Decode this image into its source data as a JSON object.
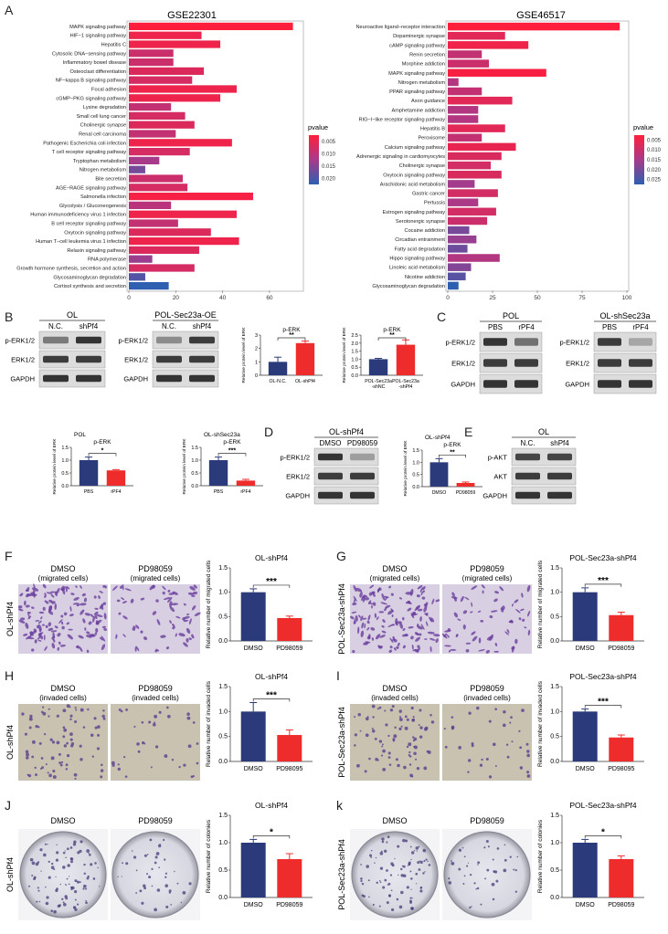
{
  "panel_letters": [
    "A",
    "B",
    "C",
    "D",
    "E",
    "F",
    "G",
    "H",
    "I",
    "J",
    "k"
  ],
  "colors": {
    "navy": "#2b3a7a",
    "red": "#ee2c2c",
    "grad_top": "#ff1e3c",
    "grad_mid": "#a83a8a",
    "grad_bot": "#2e5fb0",
    "blot_bg": "#dcdcdc",
    "band": "#2a2a2a",
    "cell_bg": "#d8cfe2",
    "cell": "#6a3f9e",
    "inv_bg": "#c9c2b0",
    "colony_bg": "#dedfe6"
  },
  "chart_data": [
    {
      "type": "bar",
      "id": "gse22301",
      "title": "GSE22301",
      "orientation": "horizontal",
      "categories": [
        "MAPK signaling pathway",
        "HIF−1 signaling pathway",
        "Hepatitis C",
        "Cytosolic DNA−sensing pathway",
        "Inflammatory bowel disease",
        "Osteoclast differentiation",
        "NF−kappa B signaling pathway",
        "Focal adhesion",
        "cGMP−PKG signaling pathway",
        "Lysine degradation",
        "Small cell lung cancer",
        "Cholinergic synapse",
        "Renal cell carcinoma",
        "Pathogenic Escherichia coli infection",
        "T cell receptor signaling pathway",
        "Tryptophan metabolism",
        "Nitrogen metabolism",
        "Bile secretion",
        "AGE−RAGE signaling pathway",
        "Salmonella infection",
        "Glycolysis / Gluconeogenesis",
        "Human immunodeficiency virus 1 infection",
        "B cell receptor signaling pathway",
        "Oxytocin signaling pathway",
        "Human T−cell leukemia virus 1 infection",
        "Relaxin signaling pathway",
        "RNA polymerase",
        "Growth hormone synthesis, secretion and action",
        "Glycosaminoglycan degradation",
        "Cortisol synthesis and secretion"
      ],
      "values": [
        70,
        31,
        39,
        19,
        19,
        32,
        27,
        46,
        39,
        18,
        24,
        28,
        20,
        44,
        26,
        13,
        7,
        23,
        25,
        53,
        18,
        46,
        21,
        35,
        47,
        30,
        10,
        28,
        7,
        17
      ],
      "pvalues": [
        0.002,
        0.004,
        0.004,
        0.008,
        0.008,
        0.006,
        0.007,
        0.004,
        0.004,
        0.009,
        0.007,
        0.006,
        0.009,
        0.004,
        0.007,
        0.012,
        0.016,
        0.008,
        0.007,
        0.003,
        0.01,
        0.004,
        0.009,
        0.006,
        0.004,
        0.006,
        0.013,
        0.007,
        0.019,
        0.022
      ],
      "xticks": [
        "0",
        "20",
        "40",
        "60"
      ],
      "xlim": [
        0,
        72
      ],
      "legend": {
        "title": "pvalue",
        "ticks": [
          "0.005",
          "0.010",
          "0.015",
          "0.020"
        ]
      }
    },
    {
      "type": "bar",
      "id": "gse46517",
      "title": "GSE46517",
      "orientation": "horizontal",
      "categories": [
        "Neuroactive ligand−receptor interaction",
        "Dopaminergic synapse",
        "cAMP signaling pathway",
        "Renin secretion",
        "Morphine addiction",
        "MAPK signaling pathway",
        "Nitrogen metabolism",
        "PPAR signaling pathway",
        "Axon guidance",
        "Amphetamine addiction",
        "RIG−I−like receptor signaling pathway",
        "Hepatitis B",
        "Peroxisome",
        "Calcium signaling pathway",
        "Adrenergic signaling in cardiomyocytes",
        "Cholinergic synapse",
        "Oxytocin signaling pathway",
        "Arachidonic acid metabolism",
        "Gastric cancer",
        "Pertussis",
        "Estrogen signaling pathway",
        "Serotonergic synapse",
        "Cocaine addiction",
        "Circadian entrainment",
        "Fatty acid degradation",
        "Hippo signaling pathway",
        "Linoleic acid metabolism",
        "Nicotine addiction",
        "Glycosaminoglycan degradation"
      ],
      "values": [
        96,
        32,
        45,
        19,
        23,
        55,
        6,
        19,
        36,
        17,
        17,
        32,
        19,
        38,
        30,
        24,
        30,
        15,
        28,
        17,
        27,
        22,
        12,
        16,
        11,
        29,
        13,
        10,
        6
      ],
      "pvalues": [
        0.002,
        0.006,
        0.004,
        0.01,
        0.009,
        0.003,
        0.012,
        0.01,
        0.006,
        0.012,
        0.012,
        0.006,
        0.01,
        0.005,
        0.007,
        0.008,
        0.007,
        0.014,
        0.008,
        0.013,
        0.008,
        0.009,
        0.018,
        0.015,
        0.019,
        0.012,
        0.017,
        0.021,
        0.025
      ],
      "xticks": [
        "0",
        "25",
        "50",
        "75",
        "100"
      ],
      "xlim": [
        0,
        100
      ],
      "legend": {
        "title": "pvalue",
        "ticks": [
          "0.005",
          "0.010",
          "0.015",
          "0.020",
          "0.025"
        ]
      }
    },
    {
      "type": "bar",
      "id": "b1",
      "title": "p-ERK",
      "ylabel": "Relative protein level of ERK",
      "categories": [
        "OL-N.C.",
        "OL-shPf4"
      ],
      "values": [
        1.0,
        2.4
      ],
      "errors": [
        0.35,
        0.15
      ],
      "ylim": [
        0,
        3
      ],
      "yticks": [
        "0",
        "1",
        "2",
        "3"
      ],
      "sig": "**"
    },
    {
      "type": "bar",
      "id": "b2",
      "title": "p-ERK",
      "ylabel": "Relative protein level of ERK",
      "categories": [
        "POL-Sec23a\n-shNC",
        "POL-Sec23a\n-shPf4"
      ],
      "values": [
        1.0,
        1.9
      ],
      "errors": [
        0.05,
        0.3
      ],
      "ylim": [
        0,
        2.5
      ],
      "yticks": [
        "0.0",
        "0.5",
        "1.0",
        "1.5",
        "2.0",
        "2.5"
      ],
      "sig": "**"
    },
    {
      "type": "bar",
      "id": "c1",
      "title": "p-ERK",
      "corner": "POL",
      "ylabel": "Relative protein level of ERK",
      "categories": [
        "PBS",
        "rPF4"
      ],
      "values": [
        1.0,
        0.6
      ],
      "errors": [
        0.12,
        0.03
      ],
      "ylim": [
        0,
        1.5
      ],
      "yticks": [
        "0.0",
        "0.5",
        "1.0",
        "1.5"
      ],
      "sig": "*"
    },
    {
      "type": "bar",
      "id": "c2",
      "title": "p-ERK",
      "corner": "OL-shSec23a",
      "ylabel": "Relative protein level of ERK",
      "categories": [
        "PBS",
        "rPF4"
      ],
      "values": [
        1.0,
        0.2
      ],
      "errors": [
        0.12,
        0.05
      ],
      "ylim": [
        0,
        1.5
      ],
      "yticks": [
        "0.0",
        "0.5",
        "1.0",
        "1.5"
      ],
      "sig": "***"
    },
    {
      "type": "bar",
      "id": "d1",
      "title": "p-ERK",
      "corner": "OL-shPf4",
      "ylabel": "Relative protein level of ERK",
      "categories": [
        "DMSO",
        "PD98059"
      ],
      "values": [
        1.0,
        0.15
      ],
      "errors": [
        0.15,
        0.04
      ],
      "ylim": [
        0,
        1.5
      ],
      "yticks": [
        "0.0",
        "0.5",
        "1.0",
        "1.5"
      ],
      "sig": "**"
    },
    {
      "type": "bar",
      "id": "f1",
      "title": "OL-shPf4",
      "ylabel": "Relative number of migrated cells",
      "categories": [
        "DMSO",
        "PD98059"
      ],
      "values": [
        1.0,
        0.47
      ],
      "errors": [
        0.07,
        0.04
      ],
      "ylim": [
        0,
        1.5
      ],
      "yticks": [
        "0.0",
        "0.5",
        "1.0",
        "1.5"
      ],
      "sig": "***"
    },
    {
      "type": "bar",
      "id": "g1",
      "title": "POL-Sec23a-shPf4",
      "ylabel": "Relative number of migrated cells",
      "categories": [
        "DMSO",
        "PD98059"
      ],
      "values": [
        1.0,
        0.53
      ],
      "errors": [
        0.09,
        0.06
      ],
      "ylim": [
        0,
        1.5
      ],
      "yticks": [
        "0.0",
        "0.5",
        "1.0",
        "1.5"
      ],
      "sig": "***"
    },
    {
      "type": "bar",
      "id": "h1",
      "title": "OL-shPf4",
      "ylabel": "Relative number of invaded cells",
      "categories": [
        "DMSO",
        "PD98095"
      ],
      "values": [
        1.0,
        0.53
      ],
      "errors": [
        0.18,
        0.1
      ],
      "ylim": [
        0,
        1.5
      ],
      "yticks": [
        "0.0",
        "0.5",
        "1.0",
        "1.5"
      ],
      "sig": "***"
    },
    {
      "type": "bar",
      "id": "i1",
      "title": "POL-Sec23a-shPf4",
      "ylabel": "Relative number of invaded cells",
      "categories": [
        "DMSO",
        "PD98095"
      ],
      "values": [
        1.0,
        0.48
      ],
      "errors": [
        0.05,
        0.05
      ],
      "ylim": [
        0,
        1.5
      ],
      "yticks": [
        "0.0",
        "0.5",
        "1.0",
        "1.5"
      ],
      "sig": "***"
    },
    {
      "type": "bar",
      "id": "j1",
      "title": "OL-shPf4",
      "ylabel": "Relative number of colonies",
      "categories": [
        "DMSO",
        "PD98059"
      ],
      "values": [
        1.0,
        0.7
      ],
      "errors": [
        0.06,
        0.1
      ],
      "ylim": [
        0,
        1.5
      ],
      "yticks": [
        "0.0",
        "0.5",
        "1.0",
        "1.5"
      ],
      "sig": "*"
    },
    {
      "type": "bar",
      "id": "k1",
      "title": "POL-Sec23a-shPf4",
      "ylabel": "Relative number of colonies",
      "categories": [
        "DMSO",
        "PD98059"
      ],
      "values": [
        1.0,
        0.7
      ],
      "errors": [
        0.06,
        0.06
      ],
      "ylim": [
        0,
        1.5
      ],
      "yticks": [
        "0.0",
        "0.5",
        "1.0",
        "1.5"
      ],
      "sig": "*"
    }
  ],
  "blots": [
    {
      "id": "b-ol",
      "group": "OL",
      "lanes": [
        "N.C.",
        "shPf4"
      ],
      "rows": [
        "p-ERK1/2",
        "ERK1/2",
        "GAPDH"
      ],
      "intensity": [
        [
          0.55,
          0.95
        ],
        [
          0.9,
          0.9
        ],
        [
          0.95,
          0.95
        ]
      ]
    },
    {
      "id": "b-pol",
      "group": "POL-Sec23a-OE",
      "lanes": [
        "N.C.",
        "shPf4"
      ],
      "rows": [
        "p-ERK1/2",
        "ERK1/2",
        "GAPDH"
      ],
      "intensity": [
        [
          0.45,
          0.9
        ],
        [
          0.9,
          0.9
        ],
        [
          0.95,
          0.95
        ]
      ]
    },
    {
      "id": "c-pol",
      "group": "POL",
      "lanes": [
        "PBS",
        "rPF4"
      ],
      "rows": [
        "p-ERK1/2",
        "ERK1/2",
        "GAPDH"
      ],
      "intensity": [
        [
          0.95,
          0.6
        ],
        [
          0.9,
          0.9
        ],
        [
          0.95,
          0.95
        ]
      ]
    },
    {
      "id": "c-ol",
      "group": "OL-shSec23a",
      "lanes": [
        "PBS",
        "rPF4"
      ],
      "rows": [
        "p-ERK1/2",
        "ERK1/2",
        "GAPDH"
      ],
      "intensity": [
        [
          0.9,
          0.3
        ],
        [
          0.9,
          0.9
        ],
        [
          0.95,
          0.95
        ]
      ]
    },
    {
      "id": "d-ol",
      "group": "OL-shPf4",
      "lanes": [
        "DMSO",
        "PD98059"
      ],
      "rows": [
        "p-ERK1/2",
        "ERK1/2",
        "GAPDH"
      ],
      "intensity": [
        [
          0.95,
          0.35
        ],
        [
          0.9,
          0.9
        ],
        [
          0.95,
          0.95
        ]
      ]
    },
    {
      "id": "e-ol",
      "group": "OL",
      "lanes": [
        "N.C.",
        "shPf4"
      ],
      "rows": [
        "p-AKT",
        "AKT",
        "GAPDH"
      ],
      "intensity": [
        [
          0.85,
          0.85
        ],
        [
          0.9,
          0.9
        ],
        [
          0.95,
          0.95
        ]
      ]
    }
  ],
  "micro": [
    {
      "id": "F",
      "row": "OL-shPf4",
      "left": "DMSO",
      "left_sub": "(migrated cells)",
      "right": "PD98059",
      "right_sub": "(migrated cells)"
    },
    {
      "id": "G",
      "row": "POL-Sec23a-shPf4",
      "left": "DMSO",
      "left_sub": "(migrated cells)",
      "right": "PD98059",
      "right_sub": "(migrated cells)"
    },
    {
      "id": "H",
      "row": "OL-shPf4",
      "left": "DMSO",
      "left_sub": "(invaded cells)",
      "right": "PD98059",
      "right_sub": "(invaded cells)"
    },
    {
      "id": "I",
      "row": "POL-Sec23a-shPf4",
      "left": "DMSO",
      "left_sub": "(invaded cells)",
      "right": "PD98059",
      "right_sub": "(invaded cells)"
    },
    {
      "id": "J",
      "row": "OL-shPf4",
      "left": "DMSO",
      "left_sub": "",
      "right": "PD98059",
      "right_sub": ""
    },
    {
      "id": "K",
      "row": "POL-Sec23a-shPf4",
      "left": "DMSO",
      "left_sub": "",
      "right": "PD98059",
      "right_sub": ""
    }
  ]
}
